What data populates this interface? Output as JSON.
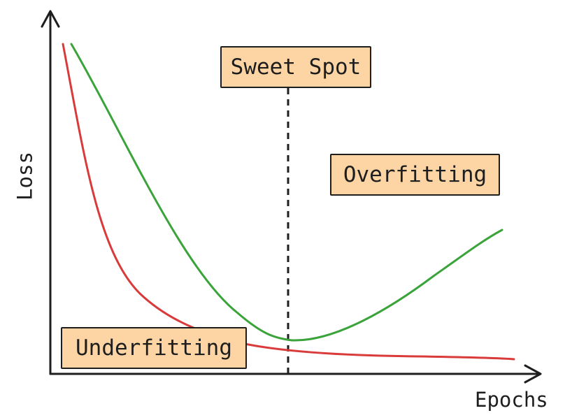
{
  "axes": {
    "xlabel": "Epochs",
    "ylabel": "Loss"
  },
  "labels": {
    "sweet_spot": "Sweet Spot",
    "overfitting": "Overfitting",
    "underfitting": "Underfitting"
  },
  "colors": {
    "training_curve": "#d93b3b",
    "validation_curve": "#3aa33a",
    "label_fill": "#fdd5a4",
    "ink": "#1e1e1e"
  }
}
